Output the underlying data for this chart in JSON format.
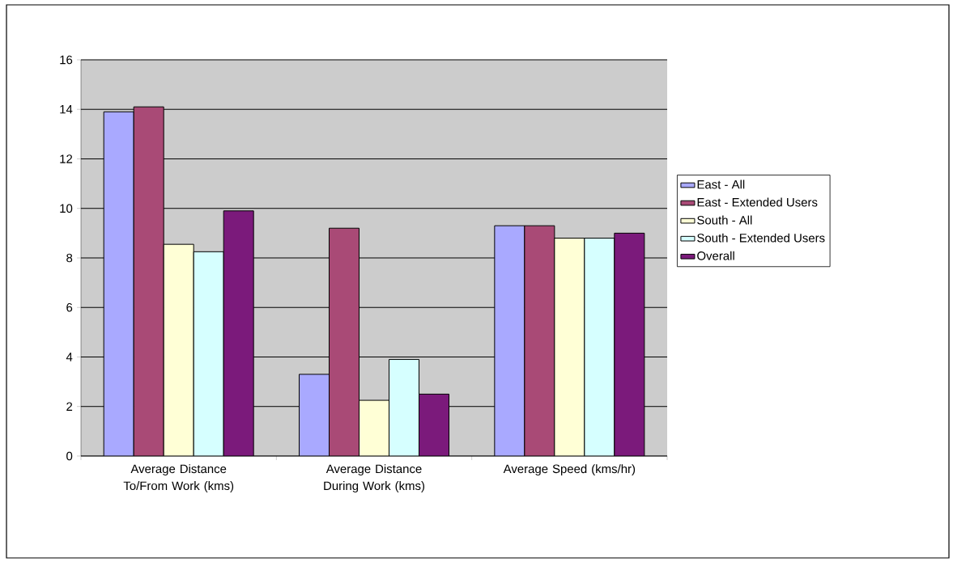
{
  "chart_data": {
    "type": "bar",
    "categories": [
      "Average Distance To/From Work (kms)",
      "Average Distance During Work (kms)",
      "Average Speed (kms/hr)"
    ],
    "series": [
      {
        "name": "East - All",
        "color": "#a9a9ff",
        "values": [
          13.9,
          3.3,
          9.3
        ]
      },
      {
        "name": "East - Extended Users",
        "color": "#a94a76",
        "values": [
          14.1,
          9.2,
          9.3
        ]
      },
      {
        "name": "South - All",
        "color": "#ffffd6",
        "values": [
          8.55,
          2.25,
          8.8
        ]
      },
      {
        "name": "South - Extended Users",
        "color": "#d6ffff",
        "values": [
          8.25,
          3.9,
          8.8
        ]
      },
      {
        "name": "Overall",
        "color": "#7b1a7b",
        "values": [
          9.9,
          2.5,
          9.0
        ]
      }
    ],
    "ylim": [
      0,
      16
    ],
    "yticks": [
      0,
      2,
      4,
      6,
      8,
      10,
      12,
      14,
      16
    ],
    "grid": "y",
    "legend": "right"
  }
}
